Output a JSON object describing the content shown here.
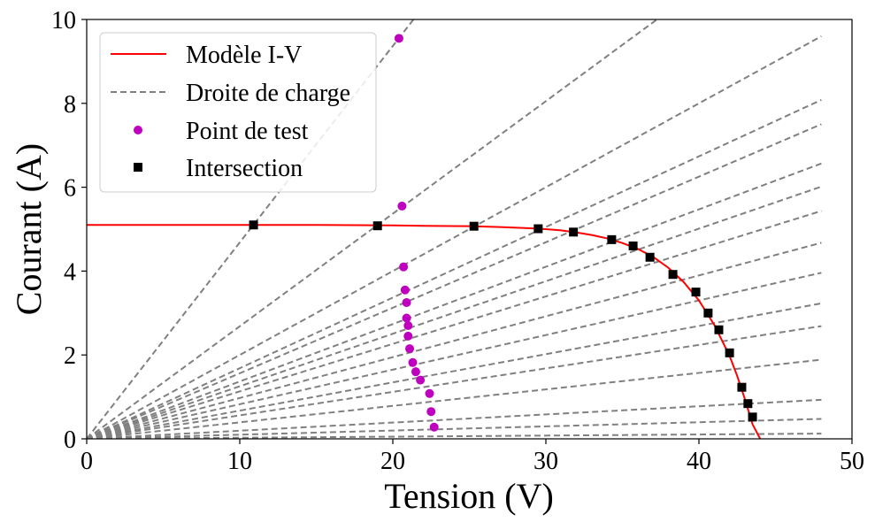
{
  "chart_data": {
    "type": "line",
    "xlabel": "Tension (V)",
    "ylabel": "Courant (A)",
    "xlim": [
      0,
      50
    ],
    "ylim": [
      0,
      10
    ],
    "xticks": [
      "0",
      "10",
      "20",
      "30",
      "40",
      "50"
    ],
    "yticks": [
      "0",
      "2",
      "4",
      "6",
      "8",
      "10"
    ],
    "grid": false,
    "legend_position": "top-left",
    "legend": [
      {
        "label": "Modèle I-V",
        "marker": "line",
        "color": "#ff0000"
      },
      {
        "label": "Droite de charge",
        "marker": "dashed-line",
        "color": "#808080"
      },
      {
        "label": "Point de test",
        "marker": "circle",
        "color": "#bf00bf"
      },
      {
        "label": "Intersection",
        "marker": "square",
        "color": "#000000"
      }
    ],
    "series": [
      {
        "name": "Modèle I-V",
        "type": "line",
        "color": "#ff0000",
        "x": [
          0,
          10,
          15,
          20,
          22,
          25,
          27,
          29,
          30,
          31,
          32,
          33,
          34,
          35,
          36,
          37,
          38,
          39,
          40,
          41,
          42,
          42.5,
          43,
          43.5,
          44
        ],
        "y": [
          5.1,
          5.1,
          5.1,
          5.09,
          5.08,
          5.07,
          5.05,
          5.02,
          5.0,
          4.97,
          4.92,
          4.86,
          4.78,
          4.67,
          4.53,
          4.34,
          4.08,
          3.74,
          3.3,
          2.72,
          1.98,
          1.5,
          0.95,
          0.35,
          0.0
        ]
      },
      {
        "name": "Droite de charge",
        "type": "line",
        "style": "dashed",
        "color": "#808080",
        "slopes": [
          0.4684,
          0.2684,
          0.2,
          0.1684,
          0.1563,
          0.1368,
          0.1253,
          0.1132,
          0.0974,
          0.0825,
          0.0673,
          0.056,
          0.0393,
          0.0194,
          0.0099,
          0.0026
        ],
        "x_max": 48
      },
      {
        "name": "Point de test",
        "type": "scatter",
        "marker": "circle",
        "color": "#bf00bf",
        "x": [
          20.4,
          20.6,
          20.7,
          20.8,
          20.9,
          20.9,
          21.0,
          21.0,
          21.1,
          21.3,
          21.5,
          21.8,
          22.4,
          22.5,
          22.7
        ],
        "y": [
          9.55,
          5.55,
          4.1,
          3.55,
          3.25,
          2.88,
          2.7,
          2.45,
          2.15,
          1.82,
          1.6,
          1.4,
          1.08,
          0.65,
          0.28
        ]
      },
      {
        "name": "Intersection",
        "type": "scatter",
        "marker": "square",
        "color": "#000000",
        "x": [
          10.9,
          19.0,
          25.3,
          29.5,
          31.8,
          34.3,
          35.7,
          36.8,
          38.3,
          39.8,
          40.6,
          41.3,
          42.0,
          42.8,
          43.2,
          43.5
        ],
        "y": [
          5.1,
          5.08,
          5.07,
          5.01,
          4.93,
          4.75,
          4.6,
          4.33,
          3.92,
          3.5,
          3.0,
          2.6,
          2.05,
          1.23,
          0.84,
          0.52
        ]
      }
    ]
  }
}
